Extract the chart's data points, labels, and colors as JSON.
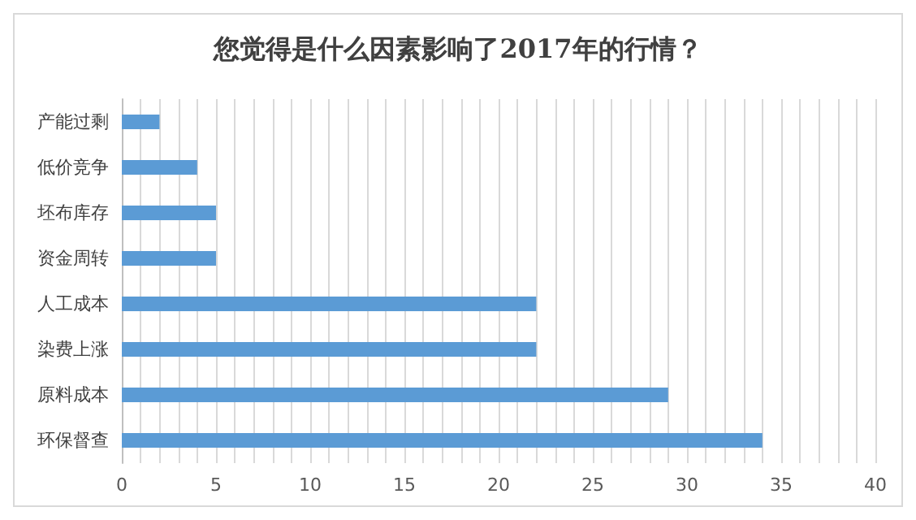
{
  "chart_data": {
    "type": "bar",
    "orientation": "horizontal",
    "title": "您觉得是什么因素影响了2017年的行情？",
    "categories": [
      "产能过剩",
      "低价竞争",
      "坯布库存",
      "资金周转",
      "人工成本",
      "染费上涨",
      "原料成本",
      "环保督查"
    ],
    "values": [
      2,
      4,
      5,
      5,
      22,
      22,
      29,
      34
    ],
    "color": "#5b9bd5",
    "xlim": [
      0,
      40
    ],
    "xticks": [
      0,
      {
        "value": 1,
        "label": null
      },
      {
        "value": 2,
        "label": null
      },
      {
        "value": 3,
        "label": null
      },
      {
        "value": 4,
        "label": null
      },
      5,
      {
        "value": 6,
        "label": null
      },
      {
        "value": 7,
        "label": null
      },
      {
        "value": 8,
        "label": null
      },
      {
        "value": 9,
        "label": null
      },
      10,
      {
        "value": 11,
        "label": null
      },
      {
        "value": 12,
        "label": null
      },
      {
        "value": 13,
        "label": null
      },
      {
        "value": 14,
        "label": null
      },
      15,
      {
        "value": 16,
        "label": null
      },
      {
        "value": 17,
        "label": null
      },
      {
        "value": 18,
        "label": null
      },
      {
        "value": 19,
        "label": null
      },
      20,
      {
        "value": 21,
        "label": null
      },
      {
        "value": 22,
        "label": null
      },
      {
        "value": 23,
        "label": null
      },
      {
        "value": 24,
        "label": null
      },
      25,
      {
        "value": 26,
        "label": null
      },
      {
        "value": 27,
        "label": null
      },
      {
        "value": 28,
        "label": null
      },
      {
        "value": 29,
        "label": null
      },
      30,
      {
        "value": 31,
        "label": null
      },
      {
        "value": 32,
        "label": null
      },
      {
        "value": 33,
        "label": null
      },
      {
        "value": 34,
        "label": null
      },
      35,
      {
        "value": 36,
        "label": null
      },
      {
        "value": 37,
        "label": null
      },
      {
        "value": 38,
        "label": null
      },
      {
        "value": 39,
        "label": null
      },
      40
    ],
    "grid": "x"
  }
}
